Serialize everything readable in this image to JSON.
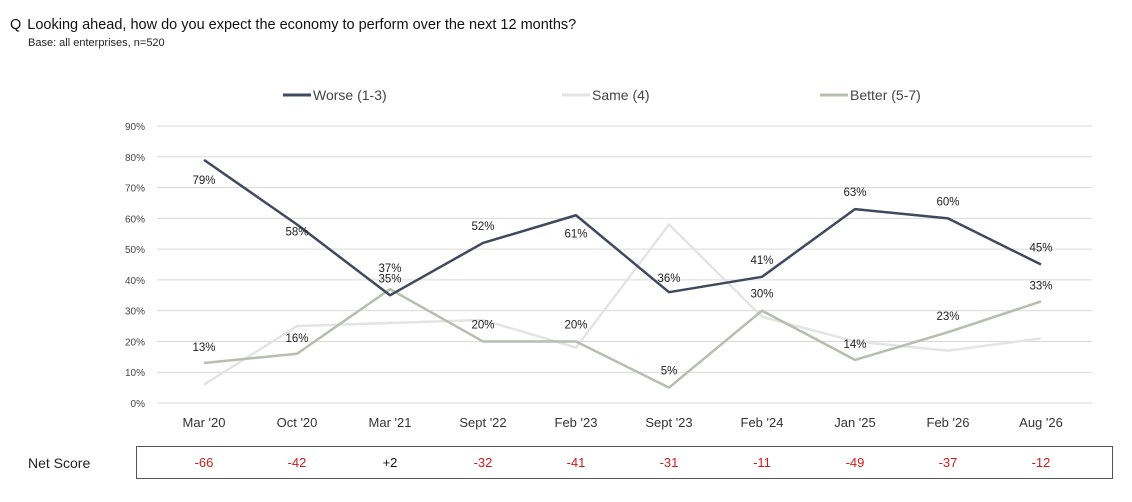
{
  "header": {
    "q_letter": "Q",
    "question": "Looking ahead, how do you expect the economy to perform over the next 12 months?",
    "base": "Base: all enterprises,  n=520"
  },
  "colors": {
    "worse": "#3f4a5f",
    "same": "#e4e4e4",
    "better": "#b6bfae",
    "negative": "#d11a1a",
    "positive": "#111111",
    "grid": "#d9d9d9"
  },
  "chart_data": {
    "type": "line",
    "categories": [
      "Mar '20",
      "Oct '20",
      "Mar '21",
      "Sept '22",
      "Feb '23",
      "Sept '23",
      "Feb '24",
      "Jan '25",
      "Feb '26",
      "Aug '26"
    ],
    "ylim": [
      0,
      90
    ],
    "yticks": [
      "0%",
      "10%",
      "20%",
      "30%",
      "40%",
      "50%",
      "60%",
      "70%",
      "80%",
      "90%"
    ],
    "grid": true,
    "legend_position": "top",
    "series": [
      {
        "name": "Worse (1-3)",
        "color_key": "worse",
        "values": [
          79,
          58,
          35,
          52,
          61,
          36,
          41,
          63,
          60,
          45
        ],
        "labels": [
          "79%",
          "58%",
          "35%",
          "52%",
          "61%",
          "36%",
          "41%",
          "63%",
          "60%",
          "45%"
        ]
      },
      {
        "name": "Same (4)",
        "color_key": "same",
        "values": [
          6,
          25,
          26,
          27,
          18,
          58,
          28,
          20,
          17,
          21
        ],
        "labels": [
          "",
          "",
          "",
          "",
          "",
          "",
          "",
          "",
          "",
          ""
        ]
      },
      {
        "name": "Better (5-7)",
        "color_key": "better",
        "values": [
          13,
          16,
          37,
          20,
          20,
          5,
          30,
          14,
          23,
          33
        ],
        "labels": [
          "13%",
          "16%",
          "37%",
          "20%",
          "20%",
          "5%",
          "30%",
          "14%",
          "23%",
          "33%"
        ]
      }
    ]
  },
  "net_score": {
    "label": "Net Score",
    "values": [
      "-66",
      "-42",
      "+2",
      "-32",
      "-41",
      "-31",
      "-11",
      "-49",
      "-37",
      "-12"
    ]
  }
}
